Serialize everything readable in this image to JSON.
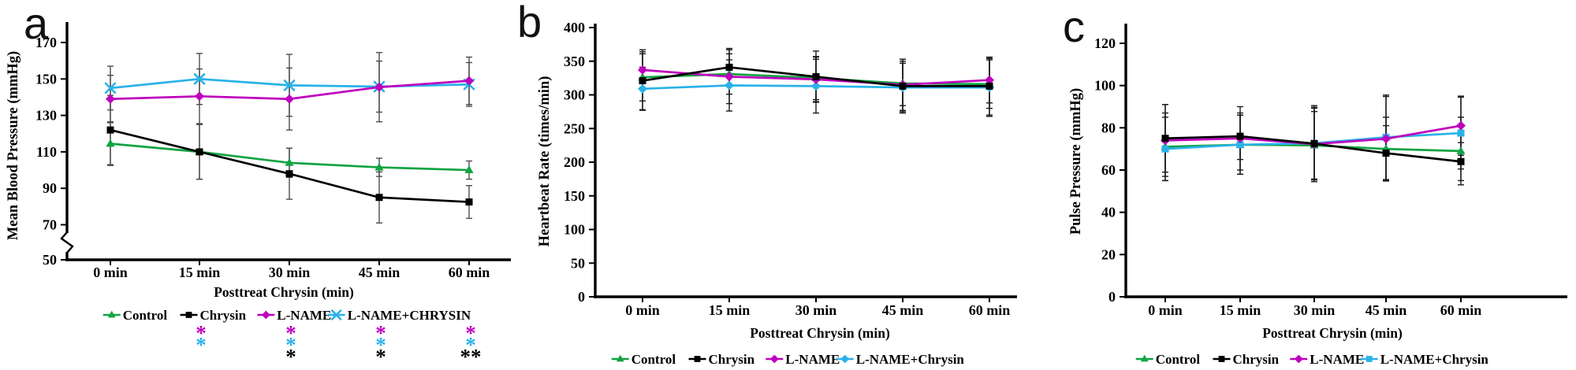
{
  "figure_background": "#ffffff",
  "chart_data": [
    {
      "type": "line",
      "panel_label": "a",
      "ylabel": "Mean Blood Pressure (mmHg)",
      "xlabel": "Posttreat Chrysin (min)",
      "x_tick_labels": [
        "0 min",
        "15 min",
        "30 min",
        "45 min",
        "60 min"
      ],
      "y_tick_labels": [
        "170",
        "150",
        "130",
        "110",
        "90",
        "70",
        "50"
      ],
      "y_ticks": [
        170,
        150,
        130,
        110,
        90,
        70,
        50
      ],
      "ylim": [
        50,
        170
      ],
      "y_axis_break": true,
      "break_between": [
        50,
        70
      ],
      "grid": false,
      "legend_position": "bottom",
      "error_bar_color": "#4d4d4d",
      "series": [
        {
          "name": "Control",
          "color": "#12A342",
          "marker": "triangle",
          "values": [
            114.5,
            110,
            104,
            101.5,
            100
          ],
          "errors": [
            12,
            15,
            8,
            5,
            5
          ]
        },
        {
          "name": "Chrysin",
          "color": "#000000",
          "marker": "square",
          "values": [
            122,
            110,
            98,
            85,
            82.5
          ],
          "errors": [
            19,
            15,
            14,
            14,
            9
          ]
        },
        {
          "name": "L-NAME",
          "color": "#BE00BE",
          "marker": "diamond",
          "values": [
            139,
            140.5,
            139,
            145.5,
            149
          ],
          "errors": [
            13,
            15,
            17,
            19,
            13
          ]
        },
        {
          "name": "L-NAME+CHRYSIN",
          "color": "#29B2E8",
          "marker": "x",
          "values": [
            145,
            150,
            146.5,
            145.8,
            147
          ],
          "errors": [
            12,
            14,
            17,
            14,
            12
          ]
        }
      ],
      "significance_columns": [
        {
          "tick_index": 1,
          "marks": [
            {
              "symbol": "*",
              "color": "#BE00BE",
              "series": "L-NAME"
            },
            {
              "symbol": "*",
              "color": "#29B2E8",
              "series": "L-NAME+CHRYSIN"
            }
          ]
        },
        {
          "tick_index": 2,
          "marks": [
            {
              "symbol": "*",
              "color": "#BE00BE",
              "series": "L-NAME"
            },
            {
              "symbol": "*",
              "color": "#29B2E8",
              "series": "L-NAME+CHRYSIN"
            },
            {
              "symbol": "*",
              "color": "#000000",
              "series": "Chrysin"
            }
          ]
        },
        {
          "tick_index": 3,
          "marks": [
            {
              "symbol": "*",
              "color": "#BE00BE",
              "series": "L-NAME"
            },
            {
              "symbol": "*",
              "color": "#29B2E8",
              "series": "L-NAME+CHRYSIN"
            },
            {
              "symbol": "*",
              "color": "#000000",
              "series": "Chrysin"
            }
          ]
        },
        {
          "tick_index": 4,
          "marks": [
            {
              "symbol": "*",
              "color": "#BE00BE",
              "series": "L-NAME"
            },
            {
              "symbol": "*",
              "color": "#29B2E8",
              "series": "L-NAME+CHRYSIN"
            },
            {
              "symbol": "**",
              "color": "#000000",
              "series": "Chrysin"
            }
          ]
        }
      ]
    },
    {
      "type": "line",
      "panel_label": "b",
      "ylabel": "Heartbeat Rate (times/min)",
      "xlabel": "Posttreat Chrysin (min)",
      "x_tick_labels": [
        "0 min",
        "15 min",
        "30 min",
        "45 min",
        "60 min"
      ],
      "y_tick_labels": [
        "400",
        "350",
        "300",
        "250",
        "200",
        "150",
        "100",
        "50",
        "0"
      ],
      "y_ticks": [
        400,
        350,
        300,
        250,
        200,
        150,
        100,
        50,
        0
      ],
      "ylim": [
        0,
        400
      ],
      "y_axis_break": false,
      "grid": false,
      "legend_position": "bottom",
      "error_bar_color": "#1a1a1a",
      "series": [
        {
          "name": "Control",
          "color": "#12A342",
          "marker": "triangle",
          "values": [
            326,
            331,
            325,
            317,
            316
          ],
          "errors": [
            35,
            30,
            32,
            33,
            36
          ]
        },
        {
          "name": "Chrysin",
          "color": "#000000",
          "marker": "square",
          "values": [
            321,
            341,
            327,
            313,
            313
          ],
          "errors": [
            43,
            28,
            38,
            40,
            43
          ]
        },
        {
          "name": "L-NAME",
          "color": "#BE00BE",
          "marker": "diamond",
          "values": [
            337,
            327,
            323,
            315,
            322
          ],
          "errors": [
            30,
            40,
            33,
            38,
            34
          ]
        },
        {
          "name": "L-NAME+Chrysin",
          "color": "#29B2E8",
          "marker": "diamond",
          "values": [
            309,
            314,
            313,
            311,
            311
          ],
          "errors": [
            32,
            38,
            40,
            36,
            43
          ]
        }
      ],
      "significance_columns": []
    },
    {
      "type": "line",
      "panel_label": "c",
      "ylabel": "Pulse Pressure  (mmHg)",
      "xlabel": "Posttreat Chrysin (min)",
      "x_tick_labels": [
        "0 min",
        "15 min",
        "30 min",
        "45 min",
        "60 min"
      ],
      "y_tick_labels": [
        "120",
        "100",
        "80",
        "60",
        "40",
        "20",
        "0"
      ],
      "y_ticks": [
        120,
        100,
        80,
        60,
        40,
        20,
        0
      ],
      "ylim": [
        0,
        120
      ],
      "y_axis_break": false,
      "grid": false,
      "legend_position": "bottom",
      "error_bar_color": "#1a1a1a",
      "series": [
        {
          "name": "Control",
          "color": "#12A342",
          "marker": "triangle",
          "values": [
            71,
            72,
            71.7,
            70,
            69
          ],
          "errors": [
            16,
            14,
            16,
            15,
            16
          ]
        },
        {
          "name": "Chrysin",
          "color": "#000000",
          "marker": "square",
          "values": [
            75,
            76,
            72.5,
            68,
            64
          ],
          "errors": [
            16,
            11,
            18,
            13,
            9
          ]
        },
        {
          "name": "L-NAME",
          "color": "#BE00BE",
          "marker": "diamond",
          "values": [
            74,
            75,
            72.3,
            74.8,
            81
          ],
          "errors": [
            17,
            15,
            17,
            20,
            14
          ]
        },
        {
          "name": "L-NAME+Chrysin",
          "color": "#29B2E8",
          "marker": "square",
          "values": [
            70,
            72,
            72.7,
            75.5,
            77.5
          ],
          "errors": [
            15,
            14,
            17,
            20,
            17
          ]
        }
      ],
      "significance_columns": []
    }
  ]
}
